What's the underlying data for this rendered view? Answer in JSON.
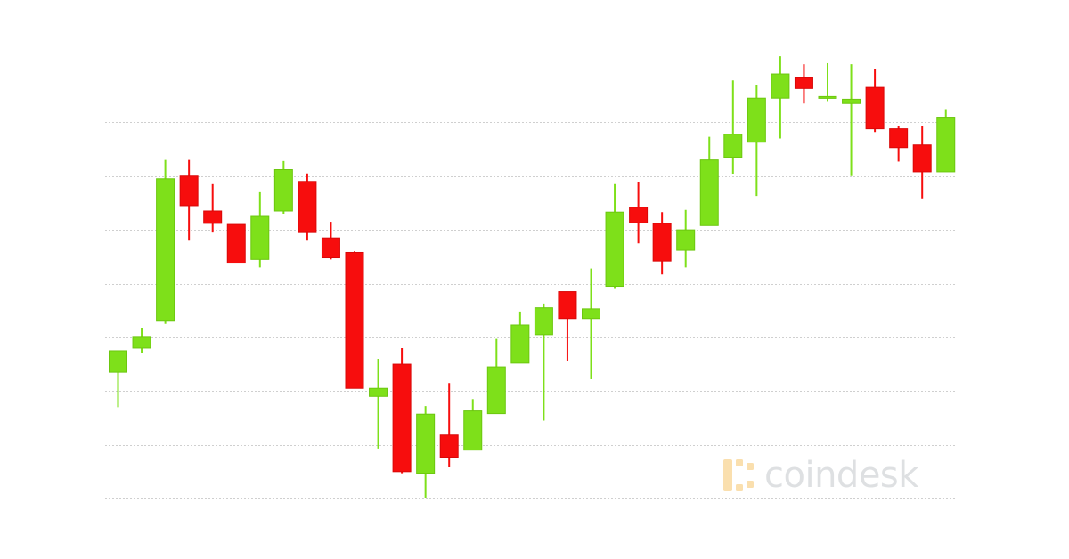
{
  "chart_data": {
    "type": "candlestick",
    "title": "",
    "xlabel": "",
    "ylabel": "",
    "ylim": [
      0,
      8
    ],
    "grid": true,
    "gridlines": [
      0,
      1,
      2,
      3,
      4,
      5,
      6,
      7,
      8
    ],
    "colors": {
      "up": "#7ee01a",
      "down": "#f70d0d",
      "grid": "#cfcfcf"
    },
    "candles": [
      {
        "open": 2.35,
        "high": 2.75,
        "low": 1.7,
        "close": 2.75
      },
      {
        "open": 2.8,
        "high": 3.18,
        "low": 2.7,
        "close": 3.0
      },
      {
        "open": 3.3,
        "high": 6.3,
        "low": 3.25,
        "close": 5.95
      },
      {
        "open": 6.0,
        "high": 6.3,
        "low": 4.8,
        "close": 5.45
      },
      {
        "open": 5.35,
        "high": 5.85,
        "low": 4.95,
        "close": 5.12
      },
      {
        "open": 5.1,
        "high": 5.1,
        "low": 4.38,
        "close": 4.38
      },
      {
        "open": 4.45,
        "high": 5.7,
        "low": 4.3,
        "close": 5.25
      },
      {
        "open": 5.35,
        "high": 6.28,
        "low": 5.3,
        "close": 6.12
      },
      {
        "open": 5.9,
        "high": 6.05,
        "low": 4.8,
        "close": 4.95
      },
      {
        "open": 4.85,
        "high": 5.15,
        "low": 4.45,
        "close": 4.48
      },
      {
        "open": 4.58,
        "high": 4.6,
        "low": 2.05,
        "close": 2.05
      },
      {
        "open": 1.9,
        "high": 2.6,
        "low": 0.93,
        "close": 2.05
      },
      {
        "open": 2.5,
        "high": 2.8,
        "low": 0.47,
        "close": 0.5
      },
      {
        "open": 0.47,
        "high": 1.72,
        "low": 0.0,
        "close": 1.57
      },
      {
        "open": 1.18,
        "high": 2.15,
        "low": 0.58,
        "close": 0.77
      },
      {
        "open": 0.9,
        "high": 1.85,
        "low": 0.9,
        "close": 1.63
      },
      {
        "open": 1.58,
        "high": 2.97,
        "low": 1.58,
        "close": 2.45
      },
      {
        "open": 2.52,
        "high": 3.48,
        "low": 2.52,
        "close": 3.23
      },
      {
        "open": 3.05,
        "high": 3.63,
        "low": 1.45,
        "close": 3.55
      },
      {
        "open": 3.85,
        "high": 3.85,
        "low": 2.55,
        "close": 3.35
      },
      {
        "open": 3.35,
        "high": 4.28,
        "low": 2.22,
        "close": 3.53
      },
      {
        "open": 3.95,
        "high": 5.85,
        "low": 3.9,
        "close": 5.33
      },
      {
        "open": 5.42,
        "high": 5.88,
        "low": 4.75,
        "close": 5.13
      },
      {
        "open": 5.12,
        "high": 5.33,
        "low": 4.17,
        "close": 4.42
      },
      {
        "open": 4.62,
        "high": 5.37,
        "low": 4.3,
        "close": 5.0
      },
      {
        "open": 5.08,
        "high": 6.73,
        "low": 5.08,
        "close": 6.3
      },
      {
        "open": 6.35,
        "high": 7.78,
        "low": 6.03,
        "close": 6.78
      },
      {
        "open": 6.63,
        "high": 7.7,
        "low": 5.63,
        "close": 7.45
      },
      {
        "open": 7.45,
        "high": 8.23,
        "low": 6.7,
        "close": 7.9
      },
      {
        "open": 7.83,
        "high": 8.08,
        "low": 7.35,
        "close": 7.63
      },
      {
        "open": 7.48,
        "high": 8.1,
        "low": 7.38,
        "close": 7.48
      },
      {
        "open": 7.35,
        "high": 8.08,
        "low": 6.0,
        "close": 7.43
      },
      {
        "open": 7.65,
        "high": 8.0,
        "low": 6.82,
        "close": 6.88
      },
      {
        "open": 6.88,
        "high": 6.93,
        "low": 6.27,
        "close": 6.53
      },
      {
        "open": 6.58,
        "high": 6.93,
        "low": 5.57,
        "close": 6.08
      },
      {
        "open": 6.08,
        "high": 7.23,
        "low": 6.08,
        "close": 7.08
      }
    ]
  },
  "watermark": {
    "text": "coindesk",
    "icon": "coindesk-logo-icon"
  }
}
